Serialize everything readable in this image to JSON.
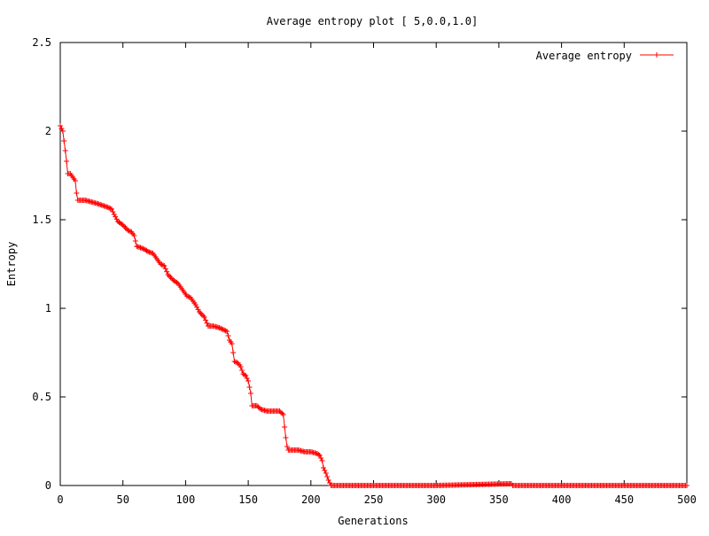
{
  "chart_data": {
    "type": "line",
    "title": "Average entropy plot [ 5,0.0,1.0]",
    "xlabel": "Generations",
    "ylabel": "Entropy",
    "xlim": [
      0,
      500
    ],
    "ylim": [
      0,
      2.5
    ],
    "x_ticks": [
      "0",
      "50",
      "100",
      "150",
      "200",
      "250",
      "300",
      "350",
      "400",
      "450",
      "500"
    ],
    "y_ticks": [
      "0",
      "0.5",
      "1",
      "1.5",
      "2",
      "2.5"
    ],
    "legend_position": "top-right",
    "grid": false,
    "series": [
      {
        "name": "Average entropy",
        "color": "#ff0000",
        "marker": "plus",
        "points": [
          [
            0,
            2.03
          ],
          [
            2,
            2.0
          ],
          [
            4,
            1.89
          ],
          [
            5,
            1.83
          ],
          [
            6,
            1.76
          ],
          [
            8,
            1.76
          ],
          [
            10,
            1.74
          ],
          [
            12,
            1.72
          ],
          [
            13,
            1.65
          ],
          [
            14,
            1.61
          ],
          [
            20,
            1.61
          ],
          [
            25,
            1.6
          ],
          [
            30,
            1.59
          ],
          [
            34,
            1.58
          ],
          [
            38,
            1.57
          ],
          [
            41,
            1.56
          ],
          [
            43,
            1.53
          ],
          [
            46,
            1.49
          ],
          [
            50,
            1.47
          ],
          [
            54,
            1.44
          ],
          [
            57,
            1.43
          ],
          [
            59,
            1.41
          ],
          [
            61,
            1.35
          ],
          [
            65,
            1.34
          ],
          [
            68,
            1.33
          ],
          [
            70,
            1.32
          ],
          [
            74,
            1.31
          ],
          [
            77,
            1.28
          ],
          [
            80,
            1.25
          ],
          [
            83,
            1.24
          ],
          [
            86,
            1.19
          ],
          [
            90,
            1.16
          ],
          [
            94,
            1.14
          ],
          [
            98,
            1.1
          ],
          [
            101,
            1.07
          ],
          [
            104,
            1.06
          ],
          [
            108,
            1.02
          ],
          [
            111,
            0.98
          ],
          [
            115,
            0.95
          ],
          [
            118,
            0.9
          ],
          [
            122,
            0.9
          ],
          [
            127,
            0.89
          ],
          [
            130,
            0.88
          ],
          [
            133,
            0.87
          ],
          [
            135,
            0.82
          ],
          [
            137,
            0.8
          ],
          [
            139,
            0.7
          ],
          [
            142,
            0.69
          ],
          [
            144,
            0.67
          ],
          [
            146,
            0.63
          ],
          [
            148,
            0.62
          ],
          [
            150,
            0.59
          ],
          [
            152,
            0.52
          ],
          [
            153,
            0.45
          ],
          [
            157,
            0.45
          ],
          [
            160,
            0.43
          ],
          [
            165,
            0.42
          ],
          [
            175,
            0.42
          ],
          [
            178,
            0.4
          ],
          [
            179,
            0.33
          ],
          [
            180,
            0.27
          ],
          [
            181,
            0.22
          ],
          [
            182,
            0.2
          ],
          [
            190,
            0.2
          ],
          [
            195,
            0.19
          ],
          [
            200,
            0.19
          ],
          [
            205,
            0.18
          ],
          [
            207,
            0.17
          ],
          [
            209,
            0.14
          ],
          [
            210,
            0.1
          ],
          [
            212,
            0.07
          ],
          [
            214,
            0.03
          ],
          [
            216,
            0.0
          ],
          [
            300,
            0.0
          ],
          [
            360,
            0.01
          ],
          [
            361,
            0.0
          ],
          [
            500,
            0.0
          ]
        ]
      }
    ]
  }
}
